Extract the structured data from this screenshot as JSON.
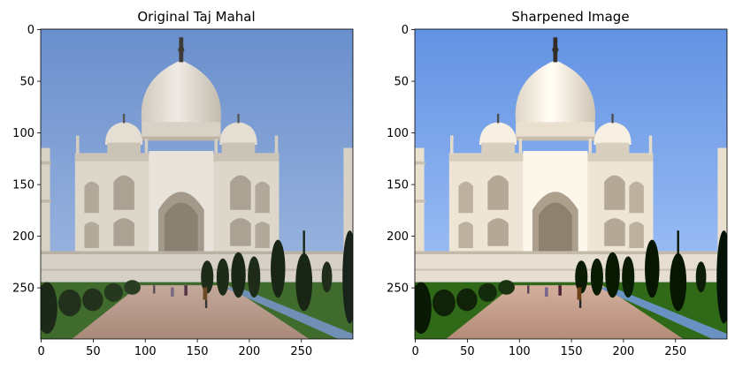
{
  "chart_data": [
    {
      "type": "image",
      "title": "Original Taj Mahal",
      "xlim": [
        0,
        299
      ],
      "ylim": [
        299,
        0
      ],
      "xticks": [
        0,
        50,
        100,
        150,
        200,
        250
      ],
      "yticks": [
        0,
        50,
        100,
        150,
        200,
        250
      ],
      "grid": false
    },
    {
      "type": "image",
      "title": "Sharpened Image",
      "xlim": [
        0,
        299
      ],
      "ylim": [
        299,
        0
      ],
      "xticks": [
        0,
        50,
        100,
        150,
        200,
        250
      ],
      "yticks": [
        0,
        50,
        100,
        150,
        200,
        250
      ],
      "grid": false
    }
  ],
  "colors": {
    "sky_top": "#6f93cf",
    "sky_bottom": "#9fb8e0",
    "marble": "#e3ddd2",
    "marble_shadow": "#b9b1a3",
    "trees": "#1d2b18",
    "lawn": "#3e6b2c",
    "path": "#b89a8a"
  }
}
